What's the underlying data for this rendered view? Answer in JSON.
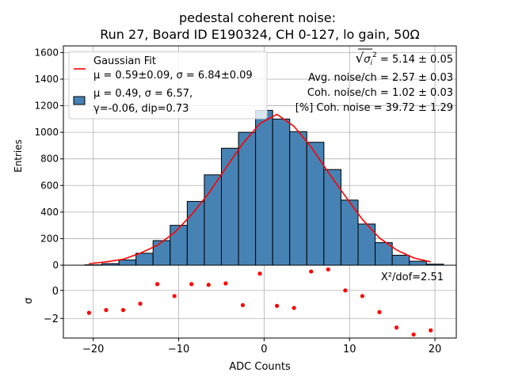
{
  "chart_data": [
    {
      "type": "bar",
      "title_line1": "pedestal coherent noise:",
      "title_line2": "Run 27, Board ID E190324, CH 0-127, lo gain, 50Ω",
      "ylabel": "Entries",
      "ylim": [
        0,
        1650
      ],
      "yticks": [
        "0",
        "200",
        "400",
        "600",
        "800",
        "1000",
        "1200",
        "1400",
        "1600"
      ],
      "grid": true,
      "bin_edges": [
        -21,
        -19,
        -17,
        -15,
        -13,
        -11,
        -9,
        -7,
        -5,
        -3,
        -1,
        1,
        3,
        5,
        7,
        9,
        11,
        13,
        15,
        17,
        19,
        21
      ],
      "counts": [
        3,
        12,
        40,
        90,
        185,
        300,
        480,
        680,
        880,
        1000,
        1165,
        1100,
        1005,
        925,
        720,
        490,
        310,
        170,
        75,
        30,
        8
      ],
      "fit_curve": {
        "x": [
          -20.5,
          -18.5,
          -16.5,
          -14.5,
          -12.5,
          -10.5,
          -8.5,
          -6.5,
          -4.5,
          -2.5,
          -0.5,
          1.5,
          3.5,
          5.5,
          7.5,
          9.5,
          11.5,
          13.5,
          15.5,
          17.5,
          19.5
        ],
        "y": [
          12,
          25,
          45,
          90,
          150,
          245,
          380,
          540,
          730,
          915,
          1065,
          1135,
          1045,
          890,
          700,
          520,
          345,
          205,
          115,
          55,
          25
        ]
      },
      "legend": {
        "position": "upper-left",
        "fit_label": "Gaussian Fit",
        "fit_params": "μ = 0.59±0.09, σ = 6.84±0.09",
        "hist_label_1": "μ = 0.49, σ = 6.57,",
        "hist_label_2": "γ=-0.06, dip=0.73"
      },
      "annotations": {
        "sqrt_prefix": "√",
        "sigma_symbol": "σ",
        "sigma_sub": "i",
        "sigma_sup": "2",
        "sqrt_value": " = 5.14 ± 0.05",
        "avg_noise": "Avg. noise/ch = 2.57 ± 0.03",
        "coh_noise": "Coh. noise/ch = 1.02 ± 0.03",
        "coh_percent": "[%] Coh. noise = 39.72  ± 1.29"
      },
      "colors": {
        "bars": "#4682b4",
        "fit": "#ff0000",
        "grid": "#b0b0b0"
      }
    },
    {
      "type": "scatter",
      "xlabel": "ADC Counts",
      "ylabel": "σ",
      "xlim": [
        -23.5,
        22.5
      ],
      "ylim": [
        -3.4,
        1.8
      ],
      "xticks": [
        -20,
        -10,
        0,
        10,
        20
      ],
      "xtick_labels": [
        "−20",
        "−10",
        "0",
        "10",
        "20"
      ],
      "yticks": [
        -2,
        0
      ],
      "ytick_labels": [
        "−2",
        "0"
      ],
      "chi2_label": "X²/dof=2.51",
      "points": {
        "x": [
          -20.5,
          -18.5,
          -16.5,
          -14.5,
          -12.5,
          -10.5,
          -8.5,
          -6.5,
          -4.5,
          -2.5,
          -0.5,
          1.5,
          3.5,
          5.5,
          7.5,
          9.5,
          11.5,
          13.5,
          15.5,
          17.5,
          19.5
        ],
        "y": [
          -1.6,
          -1.4,
          -1.4,
          -0.95,
          0.45,
          -0.4,
          0.45,
          0.4,
          0.5,
          -1.05,
          1.2,
          -1.1,
          -1.25,
          1.35,
          1.5,
          0.0,
          -0.4,
          -1.55,
          -2.65,
          -3.15,
          -2.85
        ]
      },
      "colors": {
        "points": "#ff0000"
      }
    }
  ]
}
